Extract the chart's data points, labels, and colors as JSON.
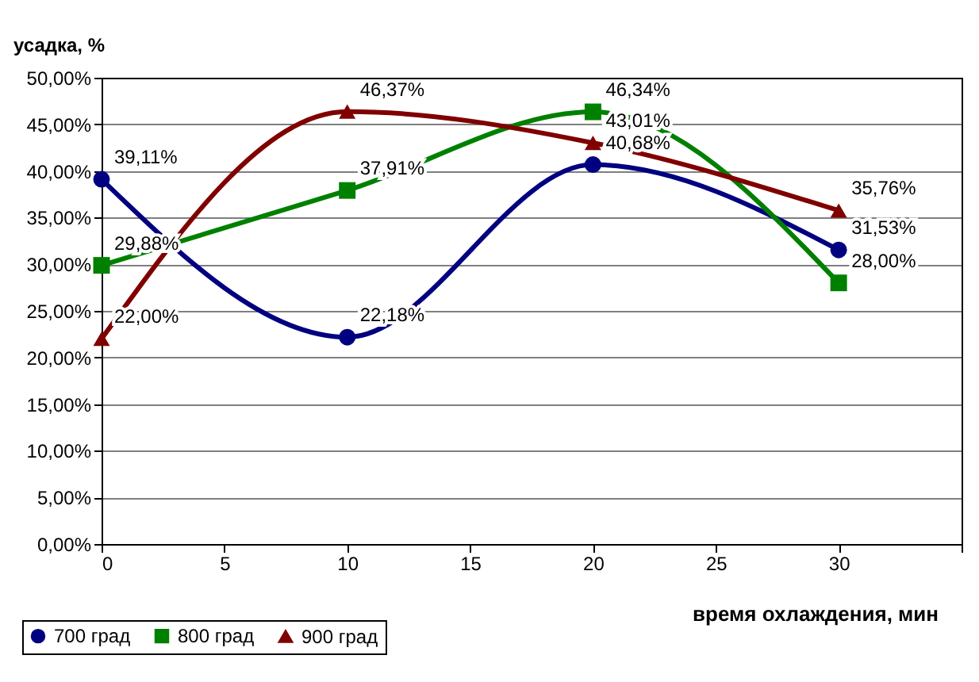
{
  "chart_data": {
    "type": "line",
    "xlabel": "время охлаждения, мин",
    "ylabel": "усадка, %",
    "x": [
      0,
      10,
      20,
      30
    ],
    "series": [
      {
        "name": "700 град",
        "color": "#000080",
        "marker": "circle",
        "values": [
          39.11,
          22.18,
          40.68,
          31.53
        ],
        "value_labels": [
          "39,11%",
          "22,18%",
          "40,68%",
          "31,53%"
        ]
      },
      {
        "name": "800 град",
        "color": "#008000",
        "marker": "square",
        "values": [
          29.88,
          37.91,
          46.34,
          28.0
        ],
        "value_labels": [
          "29,88%",
          "37,91%",
          "46,34%",
          "28,00%"
        ]
      },
      {
        "name": "900 град",
        "color": "#800000",
        "marker": "triangle",
        "values": [
          22.0,
          46.37,
          43.01,
          35.76
        ],
        "value_labels": [
          "22,00%",
          "46,37%",
          "43,01%",
          "35,76%"
        ]
      }
    ],
    "xlim": [
      0,
      35
    ],
    "xticks": [
      0,
      5,
      10,
      15,
      20,
      25,
      30,
      {
        "value": 35,
        "label": null
      }
    ],
    "ylim": [
      0,
      50
    ],
    "yticks": [
      {
        "value": 0,
        "label": "0,00%"
      },
      {
        "value": 5,
        "label": "5,00%"
      },
      {
        "value": 10,
        "label": "10,00%"
      },
      {
        "value": 15,
        "label": "15,00%"
      },
      {
        "value": 20,
        "label": "20,00%"
      },
      {
        "value": 25,
        "label": "25,00%"
      },
      {
        "value": 30,
        "label": "30,00%"
      },
      {
        "value": 35,
        "label": "35,00%"
      },
      {
        "value": 40,
        "label": "40,00%"
      },
      {
        "value": 45,
        "label": "45,00%"
      },
      {
        "value": 50,
        "label": "50,00%"
      }
    ],
    "grid": "y",
    "legend": "bottom left",
    "line_style": "solid"
  }
}
